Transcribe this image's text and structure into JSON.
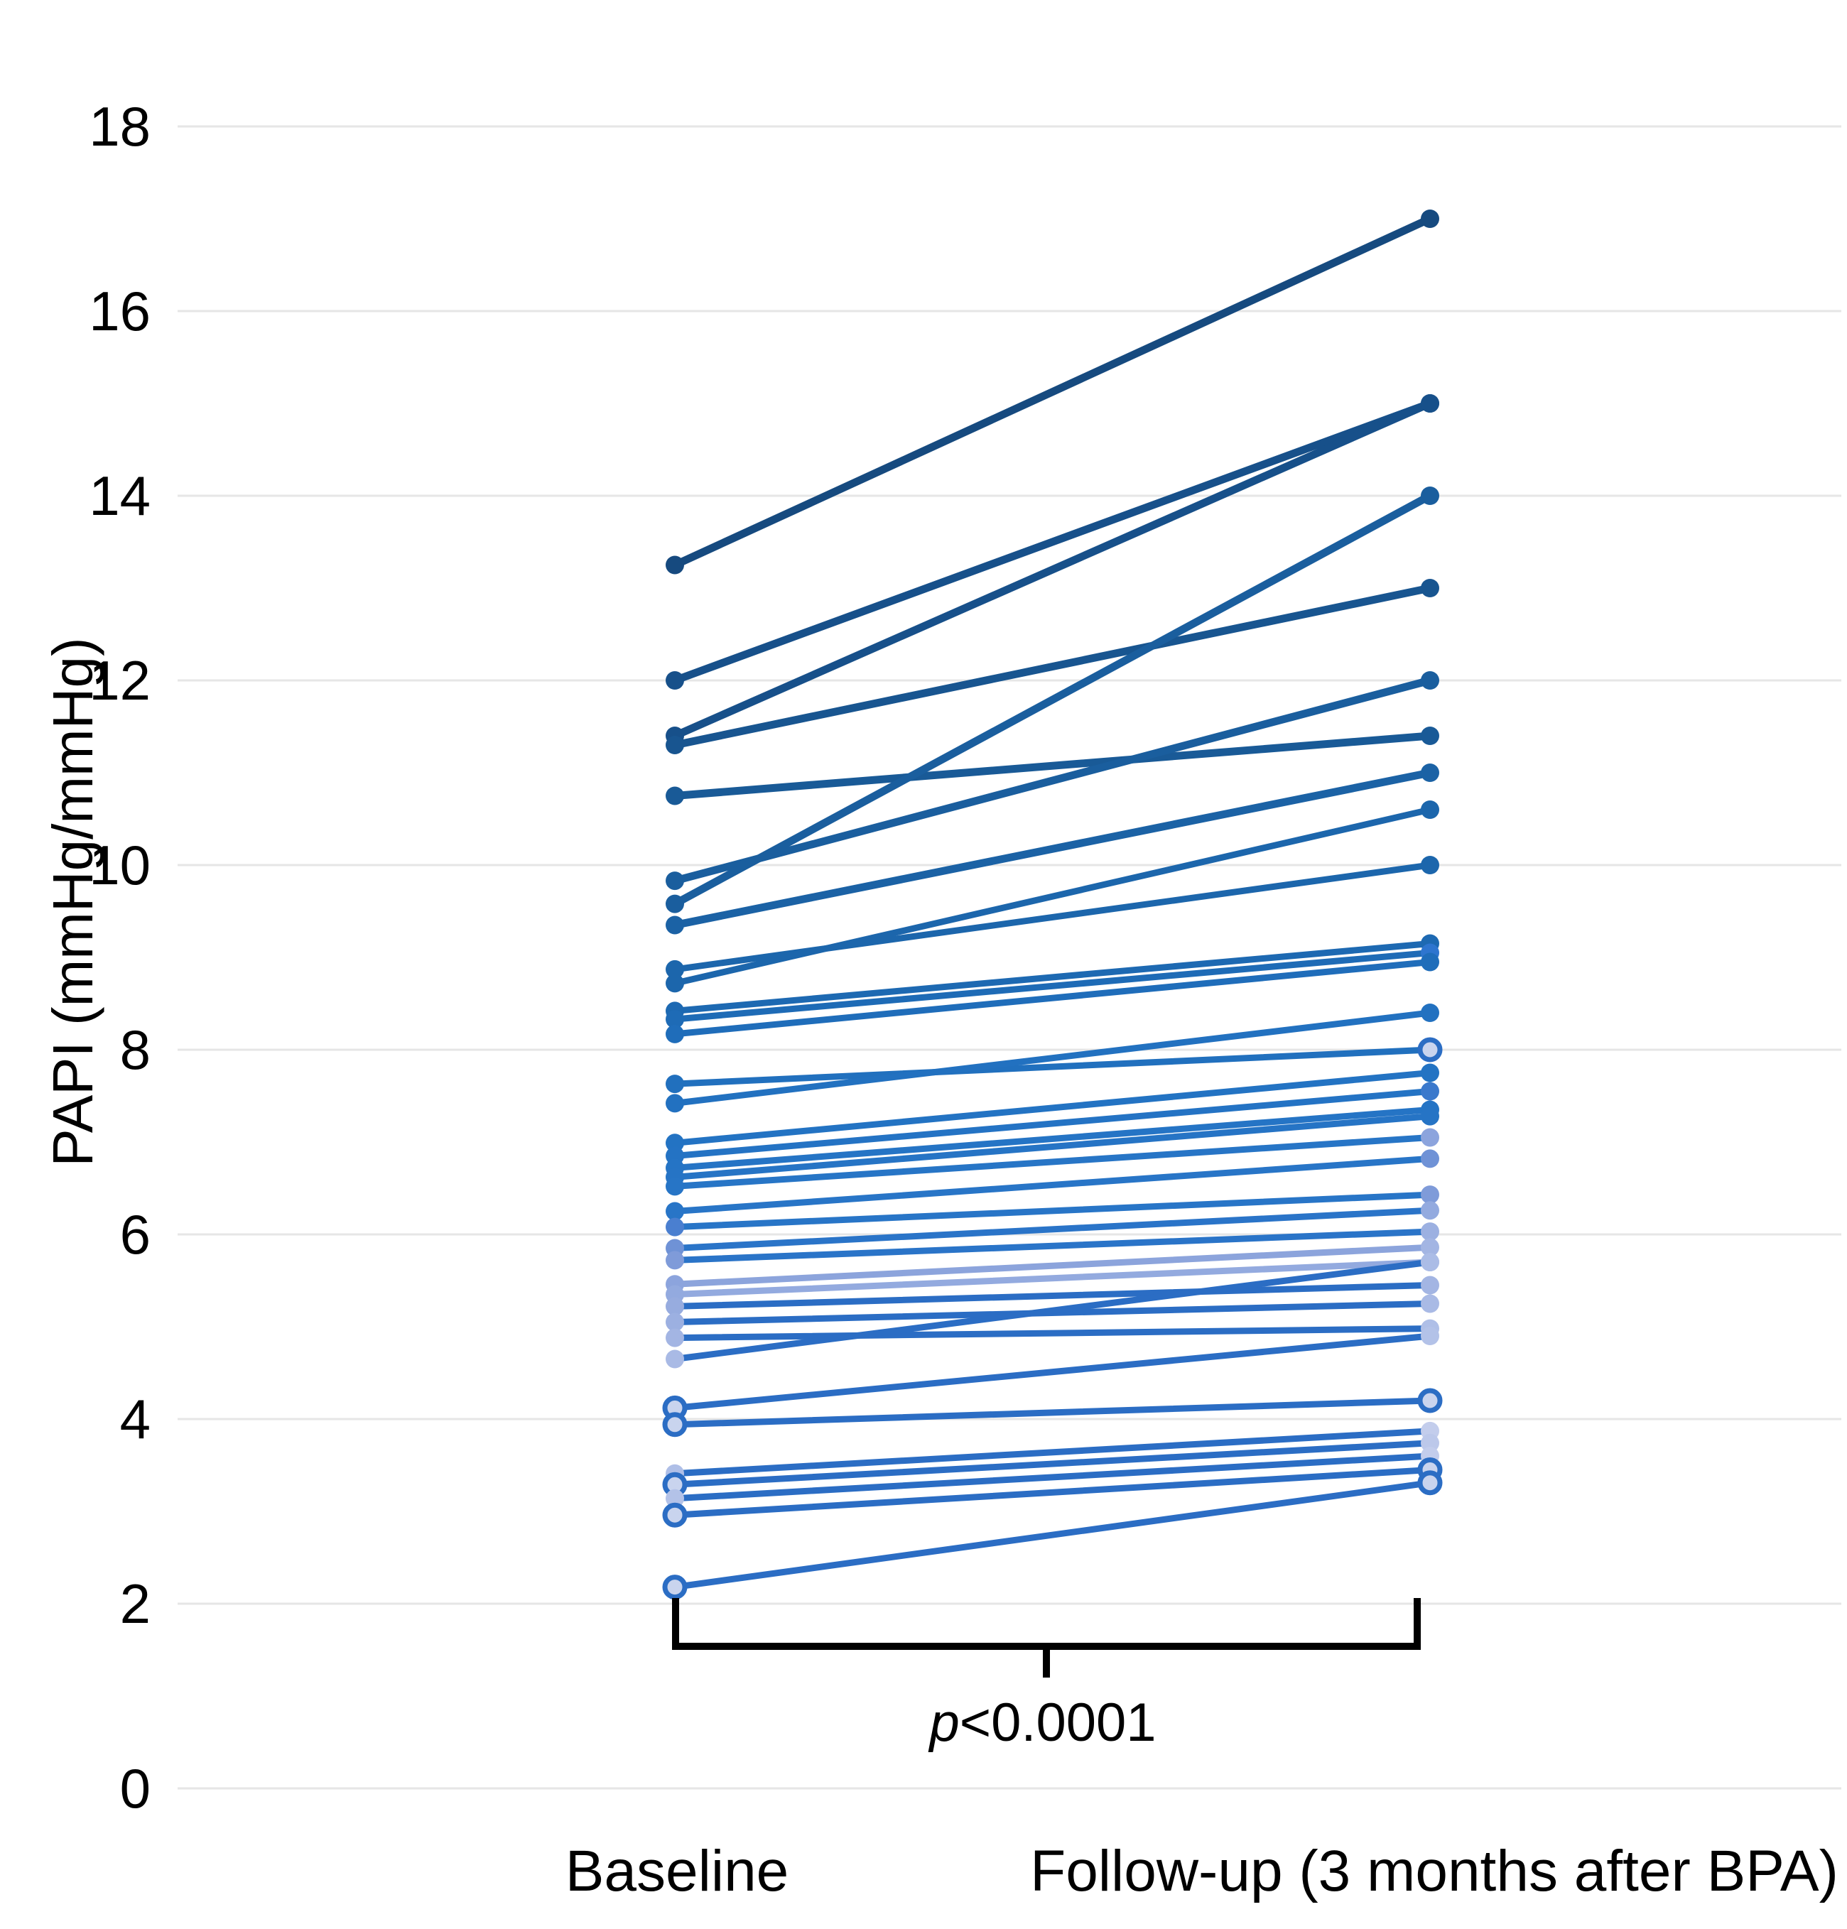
{
  "chart_data": {
    "type": "line",
    "subtype": "paired-slope-chart",
    "title": "",
    "ylabel": "PAPI (mmHg/mmHg)",
    "categories": [
      "Baseline",
      "Follow-up (3 months after BPA)"
    ],
    "ylim": [
      0,
      18
    ],
    "yticks": [
      0,
      2,
      4,
      6,
      8,
      10,
      12,
      14,
      16,
      18
    ],
    "grid": true,
    "legend": "none",
    "annotation": "p<0.0001",
    "pairs": [
      {
        "b": 13.25,
        "f": 17.0,
        "line": "#164A7F",
        "bdot": "#164A7F",
        "fdot": "#164A7F"
      },
      {
        "b": 12.0,
        "f": 15.0,
        "line": "#17508A",
        "bdot": "#17508A",
        "fdot": "#17508A"
      },
      {
        "b": 11.4,
        "f": 15.0,
        "line": "#17508A",
        "bdot": "#17508A",
        "fdot": "#17508A"
      },
      {
        "b": 11.3,
        "f": 13.0,
        "line": "#185590",
        "bdot": "#185590",
        "fdot": "#185590"
      },
      {
        "b": 10.75,
        "f": 11.4,
        "line": "#195A97",
        "bdot": "#195A97",
        "fdot": "#195A97"
      },
      {
        "b": 9.83,
        "f": 12.0,
        "line": "#1A5E9E",
        "bdot": "#1A5E9E",
        "fdot": "#1A5E9E"
      },
      {
        "b": 9.58,
        "f": 14.0,
        "line": "#1A5E9E",
        "bdot": "#1A5E9E",
        "fdot": "#1A5E9E"
      },
      {
        "b": 9.35,
        "f": 11.0,
        "line": "#1B62A5",
        "bdot": "#1B62A5",
        "fdot": "#1B62A5"
      },
      {
        "b": 8.87,
        "f": 10.0,
        "line": "#1C66AC",
        "bdot": "#1C66AC",
        "fdot": "#1C66AC"
      },
      {
        "b": 8.72,
        "f": 10.6,
        "line": "#1C66AC",
        "bdot": "#1C66AC",
        "fdot": "#1C66AC"
      },
      {
        "b": 8.42,
        "f": 9.15,
        "line": "#1D69B2",
        "bdot": "#1D69B2",
        "fdot": "#1D69B2"
      },
      {
        "b": 8.33,
        "f": 9.05,
        "line": "#1E6BB6",
        "bdot": "#1E6BB6",
        "fdot": "#2E75CF"
      },
      {
        "b": 8.17,
        "f": 8.95,
        "line": "#1F6DBA",
        "bdot": "#1F6DBA",
        "fdot": "#1F6DBA"
      },
      {
        "b": 7.63,
        "f": 8.0,
        "line": "#2170BE",
        "bdot": "#2170BE",
        "fring": true
      },
      {
        "b": 7.42,
        "f": 8.4,
        "line": "#2271C0",
        "bdot": "#2271C0",
        "fdot": "#2271C0"
      },
      {
        "b": 6.99,
        "f": 7.75,
        "line": "#2373C3",
        "bdot": "#2373C3",
        "fdot": "#2373C3"
      },
      {
        "b": 6.85,
        "f": 7.55,
        "line": "#2473C4",
        "bdot": "#2473C4",
        "fdot": "#3B79CC"
      },
      {
        "b": 6.72,
        "f": 7.35,
        "line": "#2574C5",
        "bdot": "#2574C5",
        "fdot": "#2574C5"
      },
      {
        "b": 6.62,
        "f": 7.28,
        "line": "#2674C5",
        "bdot": "#2674C5",
        "fdot": "#2674C5"
      },
      {
        "b": 6.52,
        "f": 7.05,
        "line": "#2775C6",
        "bdot": "#2775C6",
        "fdot": "#8CA4DD"
      },
      {
        "b": 6.25,
        "f": 6.82,
        "line": "#2875C7",
        "bdot": "#2875C7",
        "fdot": "#6F92D6"
      },
      {
        "b": 6.08,
        "f": 6.43,
        "line": "#2875C7",
        "bdot": "#4A7FD0",
        "fdot": "#7F9BD9"
      },
      {
        "b": 5.85,
        "f": 6.26,
        "line": "#2A74C8",
        "bdot": "#6F92D6",
        "fdot": "#93AADF"
      },
      {
        "b": 5.72,
        "f": 6.03,
        "line": "#2A74C8",
        "bdot": "#7F9BD9",
        "fdot": "#9CB0E1"
      },
      {
        "b": 5.46,
        "f": 5.86,
        "line": "#8CA4DC",
        "bdot": "#8CA4DD",
        "fdot": "#A3B5E3"
      },
      {
        "b": 5.35,
        "f": 5.7,
        "line": "#93AADF",
        "bdot": "#93AADF",
        "fdot": "#A9BAE5"
      },
      {
        "b": 5.22,
        "f": 5.45,
        "line": "#2B6DC4",
        "bdot": "#97ACDF",
        "fdot": "#A3B5E3"
      },
      {
        "b": 5.05,
        "f": 5.25,
        "line": "#2B6DC4",
        "bdot": "#9CB0E1",
        "fdot": "#A9BAE5"
      },
      {
        "b": 4.88,
        "f": 4.98,
        "line": "#2B6DC4",
        "bdot": "#A3B5E3",
        "fdot": "#AFBFE7"
      },
      {
        "b": 4.65,
        "f": 5.7,
        "line": "#2B6DC4",
        "bdot": "#A9BAE5",
        "fdot": "#ABBCE6"
      },
      {
        "b": 4.12,
        "f": 4.9,
        "line": "#2B6DC4",
        "bring": true,
        "fdot": "#B3C2E8"
      },
      {
        "b": 3.94,
        "f": 4.2,
        "line": "#2B6DC4",
        "bring": true,
        "fring": true
      },
      {
        "b": 3.41,
        "f": 3.87,
        "line": "#2B6DC4",
        "bdot": "#AFBFE7",
        "fdot": "#C3CDEC"
      },
      {
        "b": 3.29,
        "f": 3.74,
        "line": "#2B6DC4",
        "bring": true,
        "fdot": "#BCC8EA"
      },
      {
        "b": 3.14,
        "f": 3.6,
        "line": "#2B6DC4",
        "bdot": "#B3C2E8",
        "fdot": "#C3CDEC"
      },
      {
        "b": 2.96,
        "f": 3.45,
        "line": "#2B6DC4",
        "bring": true,
        "fring": true
      },
      {
        "b": 2.18,
        "f": 3.31,
        "line": "#2B6DC4",
        "bring": true,
        "fring": true
      }
    ]
  },
  "significance": {
    "p": "p",
    "value": "<0.0001"
  },
  "colors": {
    "ring_fill": "#C9D4EE",
    "ring_stroke": "#2B6DC4",
    "grid": "#E6E6E6",
    "bracket": "#000000",
    "text": "#000000"
  }
}
